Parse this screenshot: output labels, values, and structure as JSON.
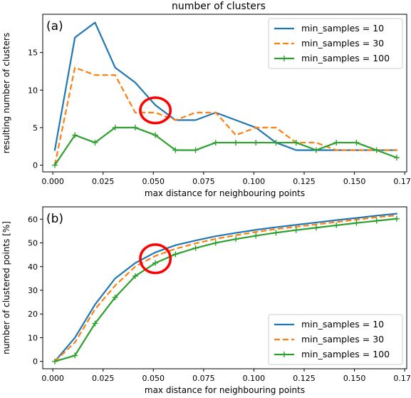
{
  "figure": {
    "suptitle": "number of clusters",
    "series_colors": [
      "#1f77b4",
      "#ff7f0e",
      "#2ca02c"
    ],
    "highlight_color": "#ff0000"
  },
  "chart_data": [
    {
      "type": "line",
      "panel_label": "(a)",
      "title": "",
      "xlabel": "max distance for neighbouring points",
      "ylabel": "resulting number of clusters",
      "xlim": [
        -0.005,
        0.176
      ],
      "ylim": [
        -0.9,
        20.1
      ],
      "xticks": [
        0.0,
        0.025,
        0.05,
        0.075,
        0.1,
        0.125,
        0.15,
        0.175
      ],
      "xtick_labels": [
        "0.000",
        "0.025",
        "0.050",
        "0.075",
        "0.100",
        "0.125",
        "0.150",
        "0.175"
      ],
      "yticks": [
        0,
        5,
        10,
        15
      ],
      "ytick_labels": [
        "0",
        "5",
        "10",
        "15"
      ],
      "grid": false,
      "legend_position": "top-right",
      "x": [
        0.001,
        0.011,
        0.021,
        0.031,
        0.041,
        0.051,
        0.061,
        0.071,
        0.081,
        0.091,
        0.101,
        0.111,
        0.121,
        0.131,
        0.141,
        0.151,
        0.161,
        0.171
      ],
      "series": [
        {
          "name": "min_samples = 10",
          "style": "solid",
          "marker": "none",
          "values": [
            2,
            17,
            19,
            13,
            11,
            8,
            6,
            6,
            7,
            6,
            5,
            3,
            2,
            2,
            2,
            2,
            2,
            2
          ]
        },
        {
          "name": "min_samples = 30",
          "style": "dashed",
          "marker": "none",
          "values": [
            0,
            13,
            12,
            12,
            7,
            7,
            6,
            7,
            7,
            4,
            5,
            5,
            3,
            3,
            2,
            2,
            2,
            2
          ]
        },
        {
          "name": "min_samples = 100",
          "style": "solid",
          "marker": "plus",
          "values": [
            0,
            4,
            3,
            5,
            5,
            4,
            2,
            2,
            3,
            3,
            3,
            3,
            3,
            2,
            3,
            3,
            2,
            1
          ]
        }
      ],
      "annotations": [
        {
          "type": "ellipse",
          "x": 0.051,
          "y": 7.3,
          "rx": 0.0075,
          "ry": 1.7
        }
      ]
    },
    {
      "type": "line",
      "panel_label": "(b)",
      "title": "",
      "xlabel": "max distance for neighbouring points",
      "ylabel": "number of clustered points [%]",
      "xlim": [
        -0.005,
        0.176
      ],
      "ylim": [
        -3.1,
        65.2
      ],
      "xticks": [
        0.0,
        0.025,
        0.05,
        0.075,
        0.1,
        0.125,
        0.15,
        0.175
      ],
      "xtick_labels": [
        "0.000",
        "0.025",
        "0.050",
        "0.075",
        "0.100",
        "0.125",
        "0.150",
        "0.175"
      ],
      "yticks": [
        0,
        10,
        20,
        30,
        40,
        50,
        60
      ],
      "ytick_labels": [
        "0",
        "10",
        "20",
        "30",
        "40",
        "50",
        "60"
      ],
      "grid": false,
      "legend_position": "bottom-right",
      "x": [
        0.001,
        0.011,
        0.021,
        0.031,
        0.041,
        0.051,
        0.061,
        0.071,
        0.081,
        0.091,
        0.101,
        0.111,
        0.121,
        0.131,
        0.141,
        0.151,
        0.161,
        0.171
      ],
      "series": [
        {
          "name": "min_samples = 10",
          "style": "solid",
          "marker": "none",
          "values": [
            0,
            10,
            24,
            35,
            41.5,
            46,
            49,
            51,
            52.8,
            54.2,
            55.5,
            56.6,
            57.6,
            58.6,
            59.6,
            60.5,
            61.5,
            62.3
          ]
        },
        {
          "name": "min_samples = 30",
          "style": "dashed",
          "marker": "none",
          "values": [
            0,
            8,
            22,
            32,
            40,
            44.5,
            47.5,
            49.8,
            51.7,
            53.2,
            54.6,
            55.8,
            56.8,
            57.8,
            58.8,
            59.8,
            60.8,
            61.6
          ]
        },
        {
          "name": "min_samples = 100",
          "style": "solid",
          "marker": "plus",
          "values": [
            0,
            2.5,
            16,
            27,
            36,
            41.5,
            45.2,
            47.8,
            50,
            51.6,
            53,
            54.3,
            55.4,
            56.4,
            57.4,
            58.4,
            59.3,
            60.2
          ]
        }
      ],
      "annotations": [
        {
          "type": "ellipse",
          "x": 0.051,
          "y": 43.3,
          "rx": 0.0075,
          "ry": 6.0
        }
      ]
    }
  ]
}
